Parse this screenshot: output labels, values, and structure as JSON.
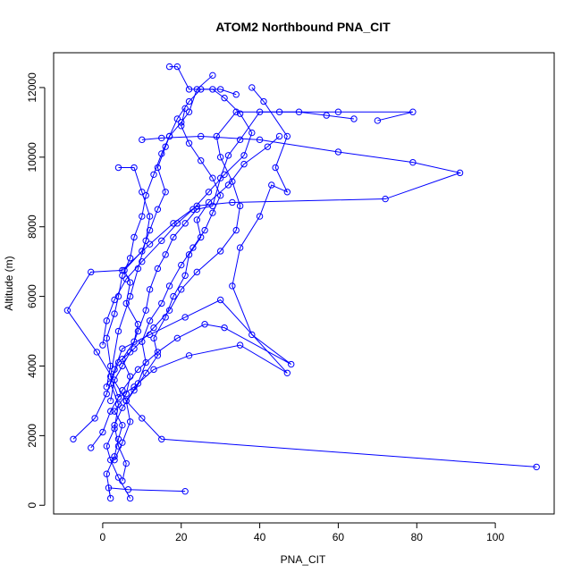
{
  "chart_data": {
    "type": "line",
    "title": "ATOM2 Northbound PNA_CIT",
    "xlabel": "PNA_CIT",
    "ylabel": "Altitude (m)",
    "xlim": [
      -12.5,
      115
    ],
    "ylim": [
      -250,
      13000
    ],
    "xticks": [
      0,
      20,
      40,
      60,
      80,
      100
    ],
    "yticks": [
      0,
      2000,
      4000,
      6000,
      8000,
      10000,
      12000
    ],
    "grid": false,
    "series": [
      {
        "color": "#0000ff",
        "marker": "open-circle",
        "points": [
          {
            "x": 21,
            "y": 400
          },
          {
            "x": 6.5,
            "y": 450
          },
          {
            "x": 1.5,
            "y": 500
          },
          {
            "x": 2,
            "y": 200
          },
          {
            "x": 1,
            "y": 900
          },
          {
            "x": 3,
            "y": 1400
          },
          {
            "x": 4,
            "y": 1900
          },
          {
            "x": 5,
            "y": 2300
          },
          {
            "x": 3,
            "y": 2700
          },
          {
            "x": 6,
            "y": 3200
          },
          {
            "x": 7,
            "y": 3700
          },
          {
            "x": 5,
            "y": 4200
          },
          {
            "x": 8,
            "y": 4700
          },
          {
            "x": 9,
            "y": 5200
          },
          {
            "x": 6,
            "y": 5800
          },
          {
            "x": 7,
            "y": 6400
          },
          {
            "x": 5.5,
            "y": 6750
          },
          {
            "x": 10,
            "y": 7300
          },
          {
            "x": 12,
            "y": 7900
          },
          {
            "x": 14,
            "y": 8500
          },
          {
            "x": 16,
            "y": 9000
          },
          {
            "x": 14,
            "y": 9700
          },
          {
            "x": 16,
            "y": 10300
          },
          {
            "x": 17,
            "y": 10600
          },
          {
            "x": 20,
            "y": 11000
          },
          {
            "x": 22,
            "y": 11300
          },
          {
            "x": 24,
            "y": 11950
          },
          {
            "x": 28,
            "y": 12350
          }
        ]
      },
      {
        "color": "#0000ff",
        "marker": "open-circle",
        "points": [
          {
            "x": 110.5,
            "y": 1100
          },
          {
            "x": 15,
            "y": 1900
          },
          {
            "x": 10,
            "y": 2500
          },
          {
            "x": 6,
            "y": 3000
          },
          {
            "x": -1.5,
            "y": 4400
          },
          {
            "x": -9,
            "y": 5600
          },
          {
            "x": -3,
            "y": 6700
          },
          {
            "x": 5,
            "y": 6750
          },
          {
            "x": 12,
            "y": 7500
          },
          {
            "x": 18,
            "y": 8100
          },
          {
            "x": 24,
            "y": 8600
          },
          {
            "x": 33,
            "y": 8700
          },
          {
            "x": 72,
            "y": 8800
          },
          {
            "x": 91,
            "y": 9550
          },
          {
            "x": 79,
            "y": 9850
          },
          {
            "x": 60,
            "y": 10150
          },
          {
            "x": 40,
            "y": 10500
          },
          {
            "x": 25,
            "y": 10600
          },
          {
            "x": 15,
            "y": 10550
          },
          {
            "x": 10,
            "y": 10500
          }
        ]
      },
      {
        "color": "#0000ff",
        "marker": "open-circle",
        "points": [
          {
            "x": 7,
            "y": 200
          },
          {
            "x": 4,
            "y": 800
          },
          {
            "x": 2,
            "y": 1300
          },
          {
            "x": 1,
            "y": 1700
          },
          {
            "x": 3,
            "y": 2200
          },
          {
            "x": 4,
            "y": 2900
          },
          {
            "x": 2,
            "y": 3500
          },
          {
            "x": 4,
            "y": 4100
          },
          {
            "x": 8,
            "y": 4500
          },
          {
            "x": 13,
            "y": 5100
          },
          {
            "x": 17,
            "y": 5600
          },
          {
            "x": 20,
            "y": 6200
          },
          {
            "x": 24,
            "y": 6700
          },
          {
            "x": 30,
            "y": 7300
          },
          {
            "x": 34,
            "y": 7900
          },
          {
            "x": 35,
            "y": 8600
          },
          {
            "x": 33,
            "y": 9300
          },
          {
            "x": 30,
            "y": 10000
          },
          {
            "x": 29,
            "y": 10600
          },
          {
            "x": 34,
            "y": 11300
          },
          {
            "x": 45,
            "y": 11300
          },
          {
            "x": 60,
            "y": 11300
          },
          {
            "x": 79,
            "y": 11300
          },
          {
            "x": 70,
            "y": 11050
          }
        ]
      },
      {
        "color": "#0000ff",
        "marker": "open-circle",
        "points": [
          {
            "x": -7.5,
            "y": 1900
          },
          {
            "x": -2,
            "y": 2500
          },
          {
            "x": 1,
            "y": 3200
          },
          {
            "x": 3,
            "y": 3900
          },
          {
            "x": 5,
            "y": 4500
          },
          {
            "x": 12,
            "y": 4900
          },
          {
            "x": 21,
            "y": 5400
          },
          {
            "x": 30,
            "y": 5900
          },
          {
            "x": 47,
            "y": 3800
          },
          {
            "x": 35,
            "y": 4600
          },
          {
            "x": 22,
            "y": 4300
          },
          {
            "x": 13,
            "y": 3900
          },
          {
            "x": 8,
            "y": 3400
          },
          {
            "x": 4,
            "y": 3100
          },
          {
            "x": 2,
            "y": 3700
          },
          {
            "x": 4,
            "y": 5000
          },
          {
            "x": 7,
            "y": 6000
          },
          {
            "x": 9,
            "y": 6800
          },
          {
            "x": 11,
            "y": 7600
          },
          {
            "x": 12,
            "y": 8300
          },
          {
            "x": 10,
            "y": 9000
          },
          {
            "x": 8,
            "y": 9700
          },
          {
            "x": 4,
            "y": 9700
          }
        ]
      },
      {
        "color": "#0000ff",
        "marker": "open-circle",
        "points": [
          {
            "x": -3,
            "y": 1650
          },
          {
            "x": 0,
            "y": 2100
          },
          {
            "x": 2,
            "y": 2700
          },
          {
            "x": 5,
            "y": 3300
          },
          {
            "x": 9,
            "y": 3900
          },
          {
            "x": 14,
            "y": 4400
          },
          {
            "x": 19,
            "y": 4800
          },
          {
            "x": 26,
            "y": 5200
          },
          {
            "x": 31,
            "y": 5100
          },
          {
            "x": 48,
            "y": 4050
          },
          {
            "x": 38,
            "y": 4900
          },
          {
            "x": 33,
            "y": 6300
          },
          {
            "x": 35,
            "y": 7400
          },
          {
            "x": 40,
            "y": 8300
          },
          {
            "x": 43,
            "y": 9200
          },
          {
            "x": 47,
            "y": 9000
          },
          {
            "x": 44,
            "y": 9700
          },
          {
            "x": 47,
            "y": 10600
          },
          {
            "x": 41,
            "y": 11600
          },
          {
            "x": 38,
            "y": 12000
          }
        ]
      },
      {
        "color": "#0000ff",
        "marker": "open-circle",
        "points": [
          {
            "x": 0,
            "y": 4600
          },
          {
            "x": 1,
            "y": 5300
          },
          {
            "x": 3,
            "y": 5900
          },
          {
            "x": 6,
            "y": 6500
          },
          {
            "x": 10,
            "y": 7000
          },
          {
            "x": 15,
            "y": 7600
          },
          {
            "x": 19,
            "y": 8100
          },
          {
            "x": 23,
            "y": 8500
          },
          {
            "x": 27,
            "y": 9000
          },
          {
            "x": 31,
            "y": 9500
          },
          {
            "x": 36,
            "y": 10050
          },
          {
            "x": 38,
            "y": 10700
          },
          {
            "x": 35,
            "y": 11250
          },
          {
            "x": 31,
            "y": 11700
          },
          {
            "x": 28,
            "y": 11950
          },
          {
            "x": 22,
            "y": 11950
          },
          {
            "x": 19,
            "y": 12600
          },
          {
            "x": 17,
            "y": 12600
          }
        ]
      },
      {
        "color": "#0000ff",
        "marker": "open-circle",
        "points": [
          {
            "x": 3,
            "y": 1300
          },
          {
            "x": 5,
            "y": 1800
          },
          {
            "x": 7,
            "y": 2400
          },
          {
            "x": 6,
            "y": 3000
          },
          {
            "x": 9,
            "y": 3500
          },
          {
            "x": 11,
            "y": 4100
          },
          {
            "x": 10,
            "y": 4700
          },
          {
            "x": 12,
            "y": 5300
          },
          {
            "x": 15,
            "y": 5800
          },
          {
            "x": 17,
            "y": 6300
          },
          {
            "x": 20,
            "y": 6900
          },
          {
            "x": 23,
            "y": 7400
          },
          {
            "x": 26,
            "y": 7900
          },
          {
            "x": 28,
            "y": 8400
          },
          {
            "x": 30,
            "y": 8900
          },
          {
            "x": 28,
            "y": 9400
          },
          {
            "x": 25,
            "y": 9900
          },
          {
            "x": 22,
            "y": 10400
          },
          {
            "x": 20,
            "y": 10900
          },
          {
            "x": 21,
            "y": 11400
          }
        ]
      },
      {
        "color": "#0000ff",
        "marker": "open-circle",
        "points": [
          {
            "x": 5,
            "y": 700
          },
          {
            "x": 6,
            "y": 1200
          },
          {
            "x": 4,
            "y": 1700
          },
          {
            "x": 3,
            "y": 2300
          },
          {
            "x": 5,
            "y": 2800
          },
          {
            "x": 8,
            "y": 3300
          },
          {
            "x": 11,
            "y": 3800
          },
          {
            "x": 14,
            "y": 4300
          },
          {
            "x": 13,
            "y": 4800
          },
          {
            "x": 16,
            "y": 5400
          },
          {
            "x": 18,
            "y": 6000
          },
          {
            "x": 21,
            "y": 6600
          },
          {
            "x": 22,
            "y": 7200
          },
          {
            "x": 25,
            "y": 7700
          },
          {
            "x": 24,
            "y": 8200
          },
          {
            "x": 27,
            "y": 8700
          },
          {
            "x": 32,
            "y": 9200
          },
          {
            "x": 36,
            "y": 9800
          },
          {
            "x": 42,
            "y": 10300
          },
          {
            "x": 45,
            "y": 10600
          }
        ]
      },
      {
        "color": "#0000ff",
        "marker": "open-circle",
        "points": [
          {
            "x": 2,
            "y": 3000
          },
          {
            "x": 3,
            "y": 3600
          },
          {
            "x": 5,
            "y": 4000
          },
          {
            "x": 7,
            "y": 4400
          },
          {
            "x": 9,
            "y": 5000
          },
          {
            "x": 11,
            "y": 5600
          },
          {
            "x": 12,
            "y": 6200
          },
          {
            "x": 14,
            "y": 6800
          },
          {
            "x": 16,
            "y": 7200
          },
          {
            "x": 18,
            "y": 7700
          },
          {
            "x": 21,
            "y": 8100
          },
          {
            "x": 24,
            "y": 8500
          },
          {
            "x": 28,
            "y": 8600
          },
          {
            "x": 30,
            "y": 9400
          },
          {
            "x": 32,
            "y": 10050
          },
          {
            "x": 35,
            "y": 10500
          },
          {
            "x": 40,
            "y": 11300
          },
          {
            "x": 50,
            "y": 11300
          },
          {
            "x": 57,
            "y": 11200
          },
          {
            "x": 64,
            "y": 11100
          }
        ]
      },
      {
        "color": "#0000ff",
        "marker": "open-circle",
        "points": [
          {
            "x": 1,
            "y": 3400
          },
          {
            "x": 2,
            "y": 4000
          },
          {
            "x": 1,
            "y": 4800
          },
          {
            "x": 3,
            "y": 5500
          },
          {
            "x": 4,
            "y": 6000
          },
          {
            "x": 5,
            "y": 6600
          },
          {
            "x": 7,
            "y": 7100
          },
          {
            "x": 8,
            "y": 7700
          },
          {
            "x": 10,
            "y": 8300
          },
          {
            "x": 11,
            "y": 8900
          },
          {
            "x": 13,
            "y": 9500
          },
          {
            "x": 15,
            "y": 10100
          },
          {
            "x": 17,
            "y": 10600
          },
          {
            "x": 19,
            "y": 11100
          },
          {
            "x": 22,
            "y": 11600
          },
          {
            "x": 25,
            "y": 11950
          },
          {
            "x": 30,
            "y": 11950
          },
          {
            "x": 34,
            "y": 11800
          }
        ]
      }
    ]
  }
}
